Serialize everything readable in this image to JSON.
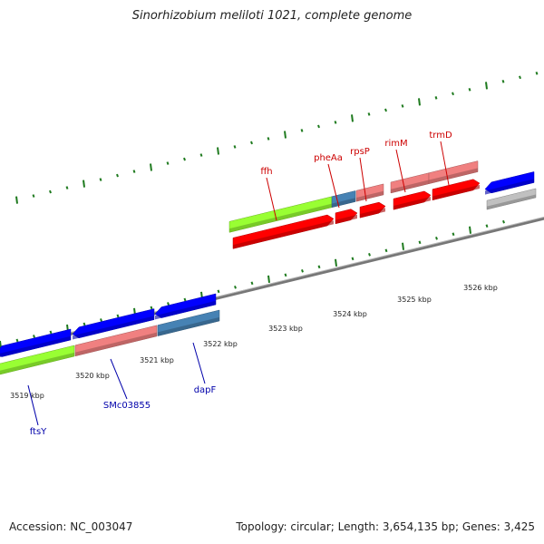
{
  "title": "Sinorhizobium meliloti 1021, complete genome",
  "footer": {
    "accession": "Accession: NC_003047",
    "topology": "Topology: circular; Length: 3,654,135 bp; Genes: 3,425"
  },
  "colors": {
    "backbone": "#808080",
    "red_strand": "#ff0000",
    "pink_feature": "#f08080",
    "blue_strand": "#0000ff",
    "steel_feature": "#4682b4",
    "green_feature": "#99ff33",
    "grey_feature": "#c0c0c0",
    "tick": "#1e7a1e",
    "label_red": "#cc0000",
    "label_blue": "#0000aa"
  },
  "axis": {
    "unit": "kbp",
    "labels": [
      "3519 kbp",
      "3520 kbp",
      "3521 kbp",
      "3522 kbp",
      "3523 kbp",
      "3524 kbp",
      "3525 kbp",
      "3526 kbp"
    ]
  },
  "genes_top": [
    {
      "name": "ffh",
      "strand": "+"
    },
    {
      "name": "pheAa",
      "strand": "+"
    },
    {
      "name": "rpsP",
      "strand": "+"
    },
    {
      "name": "rimM",
      "strand": "+"
    },
    {
      "name": "trmD",
      "strand": "+"
    }
  ],
  "genes_bottom": [
    {
      "name": "ftsY",
      "strand": "-"
    },
    {
      "name": "SMc03855",
      "strand": "-"
    },
    {
      "name": "dapF",
      "strand": "-"
    }
  ]
}
